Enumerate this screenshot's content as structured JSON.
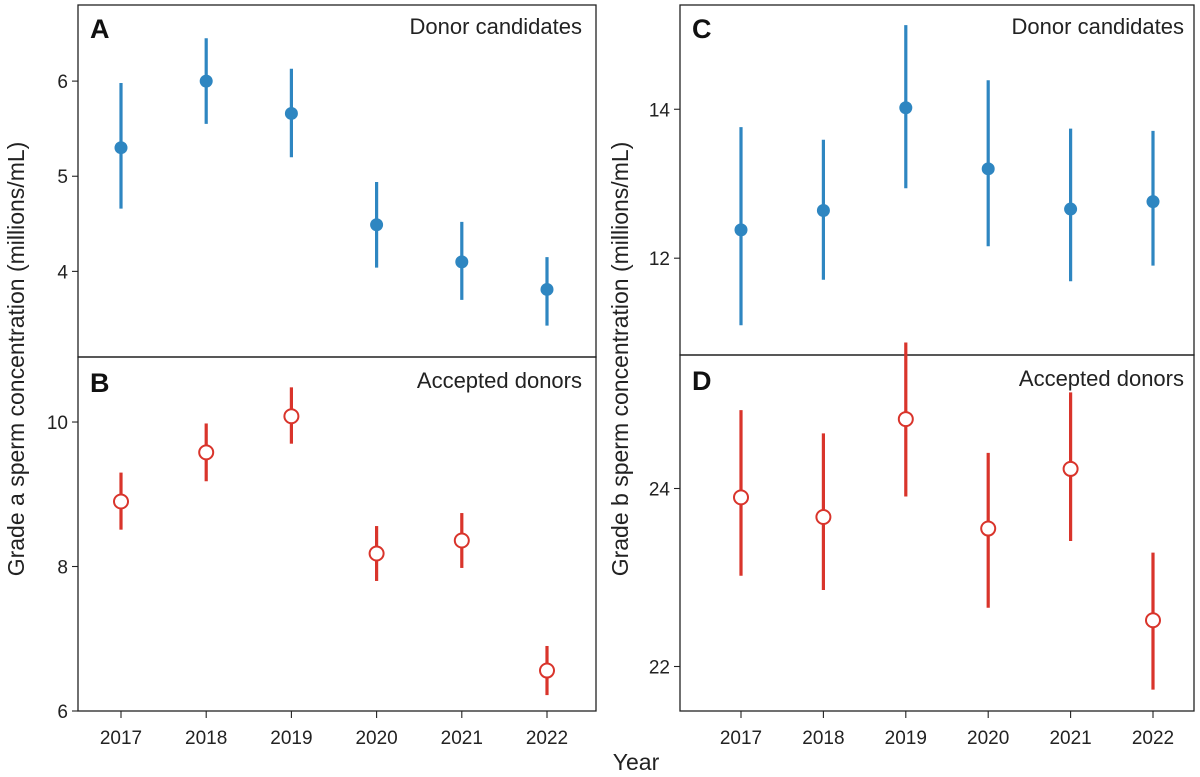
{
  "figure": {
    "shared_xlabel": "Year",
    "left_ylabel": "Grade a sperm concentration (millions/mL)",
    "right_ylabel": "Grade b sperm concentration (millions/mL)",
    "colors": {
      "candidates": "#2e86c1",
      "accepted": "#d9342b"
    }
  },
  "chart_data": [
    {
      "panel": "A",
      "type": "scatter",
      "title": "Donor candidates",
      "categories": [
        "2017",
        "2018",
        "2019",
        "2020",
        "2021",
        "2022"
      ],
      "ylim": [
        3.1,
        6.8
      ],
      "yticks": [
        4,
        5,
        6
      ],
      "marker": "filled",
      "series": [
        {
          "values": [
            5.3,
            6.0,
            5.66,
            4.49,
            4.1,
            3.81
          ],
          "lower": [
            4.66,
            5.55,
            5.2,
            4.04,
            3.7,
            3.43
          ],
          "upper": [
            5.98,
            6.45,
            6.13,
            4.94,
            4.52,
            4.15
          ]
        }
      ]
    },
    {
      "panel": "B",
      "type": "scatter",
      "title": "Accepted donors",
      "categories": [
        "2017",
        "2018",
        "2019",
        "2020",
        "2021",
        "2022"
      ],
      "ylim": [
        6,
        10.9
      ],
      "yticks": [
        6,
        8,
        10
      ],
      "marker": "open",
      "series": [
        {
          "values": [
            8.9,
            9.58,
            10.08,
            8.18,
            8.36,
            6.56
          ],
          "lower": [
            8.51,
            9.18,
            9.7,
            7.8,
            7.98,
            6.22
          ],
          "upper": [
            9.3,
            9.98,
            10.48,
            8.56,
            8.74,
            6.9
          ]
        }
      ]
    },
    {
      "panel": "C",
      "type": "scatter",
      "title": "Donor candidates",
      "categories": [
        "2017",
        "2018",
        "2019",
        "2020",
        "2021",
        "2022"
      ],
      "ylim": [
        10.7,
        15.4
      ],
      "yticks": [
        12,
        14
      ],
      "marker": "filled",
      "series": [
        {
          "values": [
            12.38,
            12.64,
            14.02,
            13.2,
            12.66,
            12.76
          ],
          "lower": [
            11.1,
            11.71,
            12.94,
            12.16,
            11.69,
            11.9
          ],
          "upper": [
            13.76,
            13.59,
            15.13,
            14.39,
            13.74,
            13.71
          ]
        }
      ]
    },
    {
      "panel": "D",
      "type": "scatter",
      "title": "Accepted donors",
      "categories": [
        "2017",
        "2018",
        "2019",
        "2020",
        "2021",
        "2022"
      ],
      "ylim": [
        21.5,
        25.5
      ],
      "yticks": [
        22,
        24
      ],
      "marker": "open",
      "series": [
        {
          "values": [
            23.9,
            23.68,
            24.78,
            23.55,
            24.22,
            22.52
          ],
          "lower": [
            23.02,
            22.86,
            23.91,
            22.66,
            23.41,
            21.74
          ],
          "upper": [
            24.88,
            24.62,
            25.64,
            24.4,
            25.08,
            23.28
          ]
        }
      ]
    }
  ]
}
